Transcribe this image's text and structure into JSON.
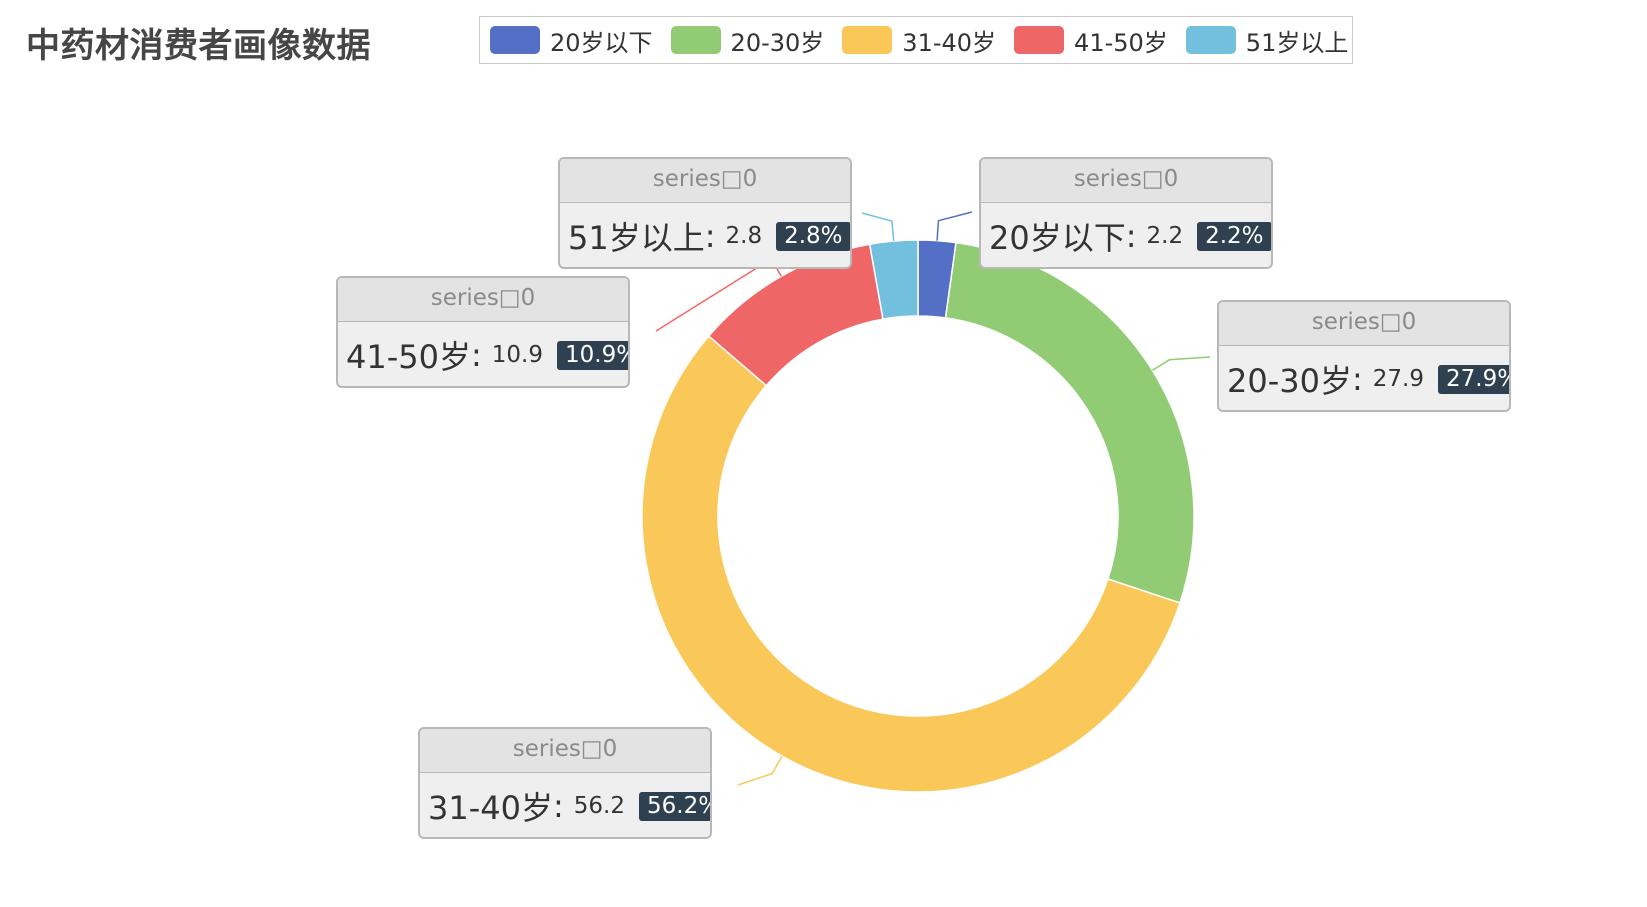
{
  "title": "中药材消费者画像数据",
  "legend": [
    {
      "label": "20岁以下",
      "color": "#5470c6"
    },
    {
      "label": "20-30岁",
      "color": "#91cc75"
    },
    {
      "label": "31-40岁",
      "color": "#fac858"
    },
    {
      "label": "41-50岁",
      "color": "#ee6666"
    },
    {
      "label": "51岁以上",
      "color": "#73c0de"
    }
  ],
  "callouts": [
    {
      "series": "series□0",
      "name": "20岁以下",
      "value": "2.2",
      "percent": "2.2%"
    },
    {
      "series": "series□0",
      "name": "20-30岁",
      "value": "27.9",
      "percent": "27.9%"
    },
    {
      "series": "series□0",
      "name": "31-40岁",
      "value": "56.2",
      "percent": "56.2%"
    },
    {
      "series": "series□0",
      "name": "41-50岁",
      "value": "10.9",
      "percent": "10.9%"
    },
    {
      "series": "series□0",
      "name": "51岁以上",
      "value": "2.8",
      "percent": "2.8%"
    }
  ],
  "chart_data": {
    "type": "pie",
    "variant": "donut",
    "title": "中药材消费者画像数据",
    "legend_position": "top",
    "categories": [
      "20岁以下",
      "20-30岁",
      "31-40岁",
      "41-50岁",
      "51岁以上"
    ],
    "values": [
      2.2,
      27.9,
      56.2,
      10.9,
      2.8
    ],
    "percents": [
      "2.2%",
      "27.9%",
      "56.2%",
      "10.9%",
      "2.8%"
    ],
    "colors": [
      "#5470c6",
      "#91cc75",
      "#fac858",
      "#ee6666",
      "#73c0de"
    ],
    "series_name": "series□0"
  }
}
